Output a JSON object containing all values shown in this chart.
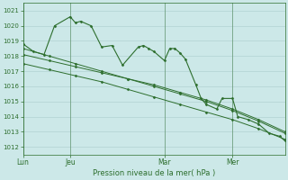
{
  "bg_color": "#cce8e8",
  "grid_color": "#aacccc",
  "line_color": "#2d6e2d",
  "title": "Pression niveau de la mer( hPa )",
  "ylim": [
    1011.5,
    1021.5
  ],
  "yticks": [
    1012,
    1013,
    1014,
    1015,
    1016,
    1017,
    1018,
    1019,
    1020,
    1021
  ],
  "xtick_labels": [
    "Lun",
    "Jeu",
    "Mar",
    "Mer"
  ],
  "xtick_positions": [
    0,
    9,
    27,
    40
  ],
  "xlim_max": 50,
  "series1_x": [
    0,
    2,
    4,
    6,
    9,
    10,
    11,
    13,
    15,
    17,
    19,
    22,
    23,
    24,
    25,
    27,
    28,
    29,
    30,
    31,
    33,
    34,
    35,
    37,
    38,
    40,
    41,
    43,
    45,
    47,
    49,
    50
  ],
  "series1_y": [
    1018.8,
    1018.3,
    1018.1,
    1020.0,
    1020.6,
    1020.2,
    1020.3,
    1020.0,
    1018.6,
    1018.7,
    1017.4,
    1018.6,
    1018.7,
    1018.5,
    1018.3,
    1017.7,
    1018.5,
    1018.5,
    1018.2,
    1017.8,
    1016.1,
    1015.2,
    1014.8,
    1014.5,
    1015.2,
    1015.2,
    1014.0,
    1013.8,
    1013.5,
    1012.9,
    1012.7,
    1012.4
  ],
  "series2_x": [
    0,
    5,
    10,
    15,
    20,
    25,
    30,
    35,
    40,
    45,
    50
  ],
  "series2_y": [
    1018.1,
    1017.7,
    1017.3,
    1016.9,
    1016.5,
    1016.1,
    1015.6,
    1015.1,
    1014.5,
    1013.8,
    1013.0
  ],
  "series3_x": [
    0,
    5,
    10,
    15,
    20,
    25,
    30,
    35,
    40,
    45,
    50
  ],
  "series3_y": [
    1017.5,
    1017.1,
    1016.7,
    1016.3,
    1015.8,
    1015.3,
    1014.8,
    1014.3,
    1013.8,
    1013.2,
    1012.5
  ],
  "series4_x": [
    0,
    5,
    10,
    15,
    20,
    25,
    30,
    35,
    40,
    45,
    50
  ],
  "series4_y": [
    1018.5,
    1018.0,
    1017.5,
    1017.0,
    1016.5,
    1016.0,
    1015.5,
    1015.0,
    1014.4,
    1013.7,
    1012.9
  ]
}
